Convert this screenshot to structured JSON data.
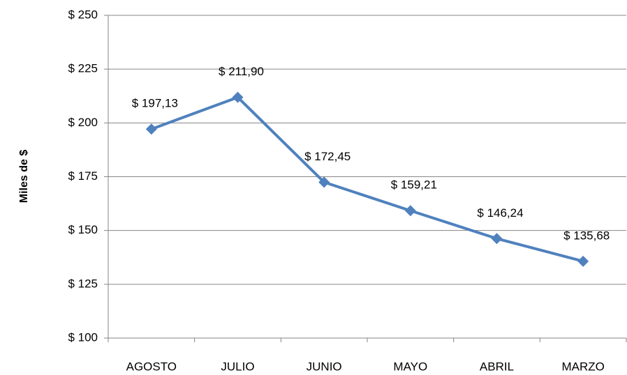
{
  "chart_data": {
    "type": "line",
    "y_label": "Miles de $",
    "categories": [
      "AGOSTO",
      "JULIO",
      "JUNIO",
      "MAYO",
      "ABRIL",
      "MARZO"
    ],
    "values": [
      197.13,
      211.9,
      172.45,
      159.21,
      146.24,
      135.68
    ],
    "value_labels": [
      "$ 197,13",
      "$ 211,90",
      "$ 172,45",
      "$ 159,21",
      "$ 146,24",
      "$ 135,68"
    ],
    "color": "#4f81bd",
    "ylim": [
      100,
      250
    ],
    "yticks": [
      {
        "value": 100,
        "label": "$ 100"
      },
      {
        "value": 125,
        "label": "$ 125"
      },
      {
        "value": 150,
        "label": "$ 150"
      },
      {
        "value": 175,
        "label": "$ 175"
      },
      {
        "value": 200,
        "label": "$ 200"
      },
      {
        "value": 225,
        "label": "$ 225"
      },
      {
        "value": 250,
        "label": "$ 250"
      }
    ],
    "grid": true
  }
}
